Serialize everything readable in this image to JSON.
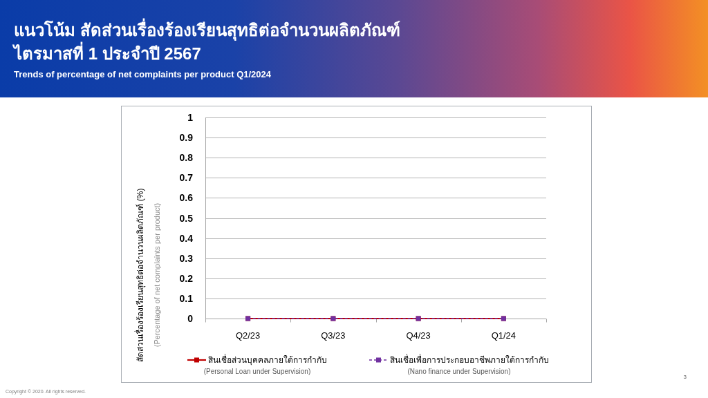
{
  "chart_data": {
    "type": "line",
    "title": "แนวโน้ม สัดส่วนเรื่องร้องเรียนสุทธิต่อจำนวนผลิตภัณฑ์\nไตรมาสที่ 1 ประจำปี 2567",
    "subtitle": "Trends of percentage of net complaints per product Q1/2024",
    "ylabel": "สัดส่วนเรื่องร้องเรียนสุทธิต่อจำนวนผลิตภัณฑ์  (%)\n(Percentage of net complaints per product)",
    "categories": [
      "Q2/23",
      "Q3/23",
      "Q4/23",
      "Q1/24"
    ],
    "series": [
      {
        "name": "สินเชื่อส่วนบุคคลภายใต้การกำกับ\n(Personal Loan under Supervision)",
        "color": "#c00000",
        "values": [
          0,
          0,
          0,
          0
        ],
        "line_style": "solid"
      },
      {
        "name": "สินเชื่อเพื่อการประกอบอาชีพภายใต้การกำกับ\n(Nano finance under Supervision)",
        "color": "#7030a0",
        "values": [
          0,
          0,
          0,
          0
        ],
        "line_style": "dashed"
      }
    ],
    "ylim": [
      0,
      1
    ],
    "yticks": [
      0,
      0.1,
      0.2,
      0.3,
      0.4,
      0.5,
      0.6,
      0.7,
      0.8,
      0.9,
      1
    ],
    "grid": "y",
    "legend": "bottom",
    "marker": "square",
    "annotations": [
      "Copyright © 2020. All rights reserved.",
      "3"
    ]
  }
}
